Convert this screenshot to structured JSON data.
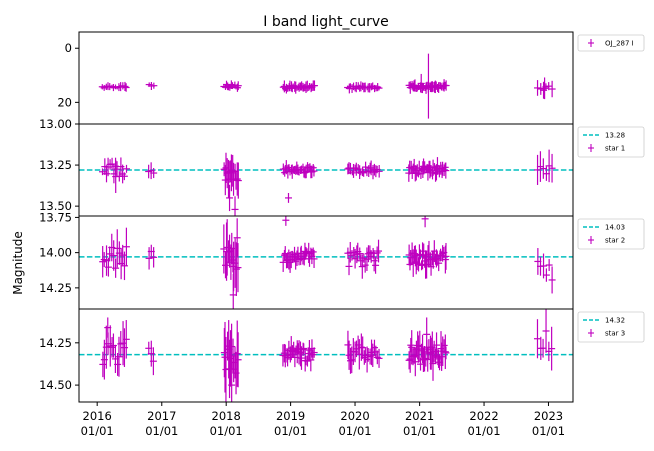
{
  "figure": {
    "title": "I band light_curve",
    "ylabel": "Magnitude",
    "x_tick_years": [
      "2016",
      "2017",
      "2018",
      "2019",
      "2020",
      "2021",
      "2022",
      "2023"
    ],
    "x_tick_date": "01/01",
    "colors": {
      "data": "#bf00bf",
      "mean_line": "#00bfbf",
      "frame": "#000000"
    }
  },
  "chart_data": [
    {
      "type": "scatter",
      "name": "OJ_287 I",
      "legend": [
        "OJ_287 I"
      ],
      "legend_placement": "outside-right",
      "xlim": [
        "2015-09-20",
        "2023-05-20"
      ],
      "ylim": [
        28,
        -6
      ],
      "y_inverted": true,
      "yticks": [
        "0",
        "20"
      ],
      "series": [
        {
          "name": "OJ_287 I",
          "segments": [
            {
              "start": "2016-02-01",
              "end": "2016-06-15",
              "center": 14.3,
              "spread": 0.5,
              "count": 14,
              "err": 1.2
            },
            {
              "start": "2016-10-20",
              "end": "2016-11-15",
              "center": 13.6,
              "spread": 0.4,
              "count": 3,
              "err": 1.2
            },
            {
              "start": "2017-12-20",
              "end": "2018-03-10",
              "center": 14.0,
              "spread": 0.6,
              "count": 14,
              "err": 1.2
            },
            {
              "start": "2018-11-20",
              "end": "2019-05-15",
              "center": 14.4,
              "spread": 0.6,
              "count": 28,
              "err": 1.5
            },
            {
              "start": "2019-11-20",
              "end": "2020-05-15",
              "center": 14.4,
              "spread": 0.5,
              "count": 22,
              "err": 1.3
            },
            {
              "start": "2020-11-01",
              "end": "2021-05-31",
              "center": 14.3,
              "spread": 0.6,
              "count": 36,
              "err": 1.6
            },
            {
              "start": "2022-11-01",
              "end": "2023-01-20",
              "center": 14.8,
              "spread": 0.8,
              "count": 6,
              "err": 2.5
            }
          ],
          "outliers": [
            {
              "x": "2021-02-20",
              "y": 14.0,
              "err": 12.0
            },
            {
              "x": "2021-01-10",
              "y": 13.0,
              "err": 3.5
            },
            {
              "x": "2022-12-10",
              "y": 14.8,
              "err": 4.0
            }
          ]
        }
      ]
    },
    {
      "type": "scatter",
      "name": "star 1",
      "legend": [
        "13.28",
        "star 1"
      ],
      "legend_placement": "outside-right",
      "mean": 13.28,
      "xlim": [
        "2015-09-20",
        "2023-05-20"
      ],
      "ylim": [
        13.56,
        13.0
      ],
      "y_inverted": true,
      "yticks": [
        "13.00",
        "13.25",
        "13.50"
      ],
      "series": [
        {
          "name": "star 1",
          "segments": [
            {
              "start": "2016-02-01",
              "end": "2016-06-15",
              "center": 13.28,
              "spread": 0.04,
              "count": 14,
              "err": 0.04
            },
            {
              "start": "2016-10-20",
              "end": "2016-11-15",
              "center": 13.28,
              "spread": 0.02,
              "count": 3,
              "err": 0.04
            },
            {
              "start": "2017-12-20",
              "end": "2018-03-10",
              "center": 13.3,
              "spread": 0.05,
              "count": 14,
              "err": 0.08
            },
            {
              "start": "2018-11-20",
              "end": "2019-05-15",
              "center": 13.28,
              "spread": 0.02,
              "count": 28,
              "err": 0.03
            },
            {
              "start": "2019-11-20",
              "end": "2020-05-15",
              "center": 13.28,
              "spread": 0.02,
              "count": 22,
              "err": 0.03
            },
            {
              "start": "2020-11-01",
              "end": "2021-05-31",
              "center": 13.28,
              "spread": 0.025,
              "count": 36,
              "err": 0.04
            },
            {
              "start": "2022-11-01",
              "end": "2023-01-20",
              "center": 13.28,
              "spread": 0.03,
              "count": 6,
              "err": 0.08
            }
          ],
          "outliers": [
            {
              "x": "2018-01-20",
              "y": 13.45,
              "err": 0.08
            },
            {
              "x": "2018-02-20",
              "y": 13.52,
              "err": 0.08
            },
            {
              "x": "2018-12-20",
              "y": 13.45,
              "err": 0.03
            },
            {
              "x": "2016-04-15",
              "y": 13.32,
              "err": 0.1
            }
          ]
        }
      ]
    },
    {
      "type": "scatter",
      "name": "star 2",
      "legend": [
        "14.03",
        "star 2"
      ],
      "legend_placement": "outside-right",
      "mean": 14.03,
      "xlim": [
        "2015-09-20",
        "2023-05-20"
      ],
      "ylim": [
        14.4,
        13.74
      ],
      "y_inverted": true,
      "yticks": [
        "13.75",
        "14.00",
        "14.25"
      ],
      "series": [
        {
          "name": "star 2",
          "segments": [
            {
              "start": "2016-02-01",
              "end": "2016-06-15",
              "center": 14.05,
              "spread": 0.1,
              "count": 14,
              "err": 0.1
            },
            {
              "start": "2016-10-20",
              "end": "2016-11-15",
              "center": 14.02,
              "spread": 0.04,
              "count": 3,
              "err": 0.07
            },
            {
              "start": "2017-12-20",
              "end": "2018-03-10",
              "center": 14.0,
              "spread": 0.12,
              "count": 14,
              "err": 0.15
            },
            {
              "start": "2018-11-20",
              "end": "2019-05-15",
              "center": 14.03,
              "spread": 0.04,
              "count": 28,
              "err": 0.05
            },
            {
              "start": "2019-11-20",
              "end": "2020-05-15",
              "center": 14.04,
              "spread": 0.06,
              "count": 22,
              "err": 0.06
            },
            {
              "start": "2020-11-01",
              "end": "2021-05-31",
              "center": 14.04,
              "spread": 0.06,
              "count": 36,
              "err": 0.07
            },
            {
              "start": "2022-11-01",
              "end": "2023-01-20",
              "center": 14.12,
              "spread": 0.1,
              "count": 6,
              "err": 0.07
            }
          ],
          "outliers": [
            {
              "x": "2018-12-05",
              "y": 13.77,
              "err": 0.04
            },
            {
              "x": "2021-02-01",
              "y": 13.76,
              "err": 0.06
            },
            {
              "x": "2018-02-10",
              "y": 14.3,
              "err": 0.15
            }
          ]
        }
      ]
    },
    {
      "type": "scatter",
      "name": "star 3",
      "legend": [
        "14.32",
        "star 3"
      ],
      "legend_placement": "outside-right",
      "mean": 14.32,
      "xlim": [
        "2015-09-20",
        "2023-05-20"
      ],
      "ylim": [
        14.6,
        14.05
      ],
      "y_inverted": true,
      "yticks": [
        "14.25",
        "14.50"
      ],
      "series": [
        {
          "name": "star 3",
          "segments": [
            {
              "start": "2016-02-01",
              "end": "2016-06-15",
              "center": 14.3,
              "spread": 0.08,
              "count": 14,
              "err": 0.1
            },
            {
              "start": "2016-10-20",
              "end": "2016-11-15",
              "center": 14.32,
              "spread": 0.04,
              "count": 3,
              "err": 0.06
            },
            {
              "start": "2017-12-20",
              "end": "2018-03-10",
              "center": 14.35,
              "spread": 0.1,
              "count": 14,
              "err": 0.14
            },
            {
              "start": "2018-11-20",
              "end": "2019-05-15",
              "center": 14.32,
              "spread": 0.04,
              "count": 28,
              "err": 0.05
            },
            {
              "start": "2019-11-20",
              "end": "2020-05-15",
              "center": 14.31,
              "spread": 0.05,
              "count": 22,
              "err": 0.06
            },
            {
              "start": "2020-11-01",
              "end": "2021-05-31",
              "center": 14.32,
              "spread": 0.06,
              "count": 36,
              "err": 0.07
            },
            {
              "start": "2022-11-01",
              "end": "2023-01-20",
              "center": 14.26,
              "spread": 0.08,
              "count": 6,
              "err": 0.1
            }
          ],
          "outliers": [
            {
              "x": "2016-03-01",
              "y": 14.16,
              "err": 0.06
            },
            {
              "x": "2018-02-01",
              "y": 14.5,
              "err": 0.14
            },
            {
              "x": "2021-02-10",
              "y": 14.2,
              "err": 0.1
            }
          ]
        }
      ]
    }
  ]
}
